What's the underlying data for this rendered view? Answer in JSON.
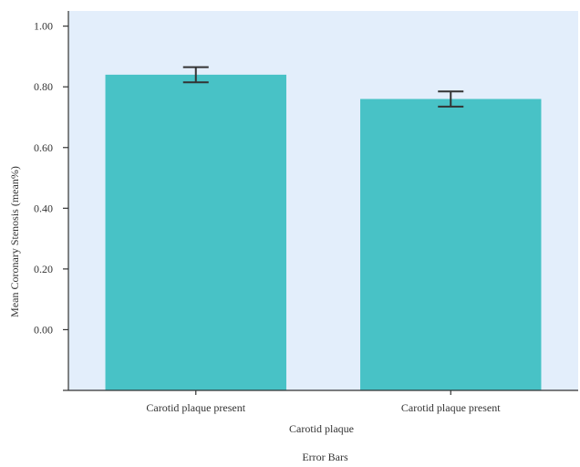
{
  "chart_data": {
    "type": "bar",
    "categories": [
      "Carotid plaque present",
      "Carotid plaque present"
    ],
    "values": [
      0.84,
      0.76
    ],
    "error_bars": [
      {
        "low": 0.815,
        "high": 0.865
      },
      {
        "low": 0.735,
        "high": 0.785
      }
    ],
    "xlabel": "Carotid plaque",
    "ylabel": "Mean Coronary Stenosis (mean%)",
    "yticks": [
      0.0,
      0.2,
      0.4,
      0.6,
      0.8,
      1.0
    ],
    "ytick_labels": [
      "0.00",
      "0.20",
      "0.40",
      "0.60",
      "0.80",
      "1.00"
    ],
    "ylim": [
      -0.2,
      1.05
    ],
    "footnote": "Error Bars",
    "grid": false,
    "colors": {
      "bar": "#48c2c6",
      "plot_background": "#e3eefb",
      "error_bar": "#333333",
      "axis": "#333333"
    }
  }
}
